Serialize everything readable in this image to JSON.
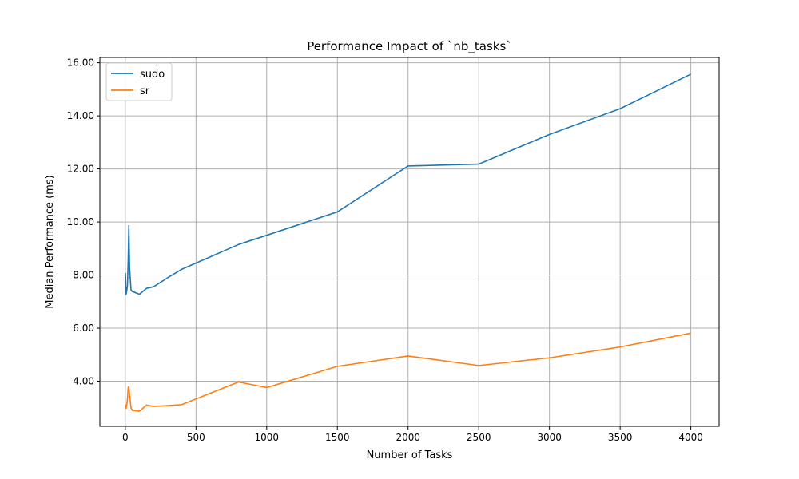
{
  "chart_data": {
    "type": "line",
    "title": "Performance Impact of `nb_tasks`",
    "xlabel": "Number of Tasks",
    "ylabel": "Median Performance (ms)",
    "xlim": [
      -180,
      4200
    ],
    "ylim": [
      2.3,
      16.2
    ],
    "xticks": [
      0,
      500,
      1000,
      1500,
      2000,
      2500,
      3000,
      3500,
      4000
    ],
    "yticks": [
      4,
      6,
      8,
      10,
      12,
      14,
      16
    ],
    "ytick_labels": [
      "4.00",
      "6.00",
      "8.00",
      "10.00",
      "12.00",
      "14.00",
      "16.00"
    ],
    "grid": true,
    "legend_position": "top-left",
    "series": [
      {
        "name": "sudo",
        "color": "#1f77b4",
        "x": [
          1,
          5,
          10,
          15,
          20,
          25,
          30,
          40,
          50,
          100,
          150,
          200,
          300,
          400,
          800,
          1000,
          1500,
          2000,
          2500,
          3000,
          3500,
          4000
        ],
        "y": [
          8.08,
          7.27,
          7.4,
          7.6,
          8.5,
          9.86,
          8.3,
          7.45,
          7.38,
          7.28,
          7.5,
          7.56,
          7.9,
          8.22,
          9.15,
          9.5,
          10.38,
          12.11,
          12.18,
          13.3,
          14.27,
          15.57
        ]
      },
      {
        "name": "sr",
        "color": "#ff7f0e",
        "x": [
          1,
          5,
          10,
          15,
          20,
          25,
          30,
          40,
          50,
          100,
          150,
          200,
          300,
          400,
          800,
          1000,
          1500,
          2000,
          2500,
          3000,
          3500,
          4000
        ],
        "y": [
          3.12,
          2.97,
          3.1,
          3.3,
          3.75,
          3.8,
          3.5,
          3.0,
          2.9,
          2.87,
          3.1,
          3.05,
          3.08,
          3.12,
          3.97,
          3.76,
          4.56,
          4.95,
          4.59,
          4.88,
          5.29,
          5.81
        ]
      }
    ]
  }
}
